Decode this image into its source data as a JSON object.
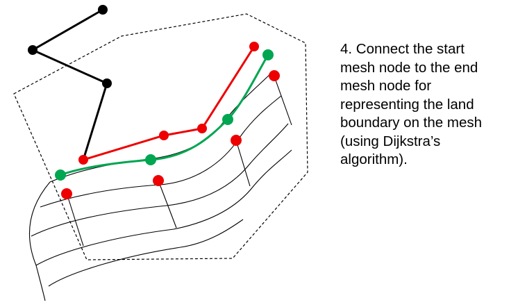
{
  "caption": {
    "lines": [
      "4. Connect the start",
      "mesh node to the end",
      "mesh node for",
      "representing the land",
      "boundary on the mesh",
      "(using Dijkstra’s",
      "algorithm)."
    ]
  },
  "colors": {
    "black_path": "#000000",
    "red_path": "#ee0000",
    "green_path": "#00a651",
    "mesh": "#000000",
    "boundary": "#000000"
  },
  "icons": {
    "nodes": "filled-circle",
    "boundary": "dashed-polygon"
  }
}
